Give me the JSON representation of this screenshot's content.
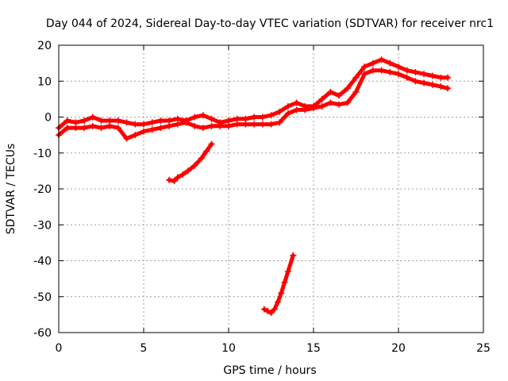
{
  "chart_data": {
    "type": "scatter",
    "title": "Day 044 of 2024, Sidereal Day-to-day VTEC variation (SDTVAR) for receiver nrc1",
    "xlabel": "GPS time / hours",
    "ylabel": "SDTVAR / TECUs",
    "xlim": [
      0,
      25
    ],
    "ylim": [
      -60,
      20
    ],
    "xticks": [
      0,
      5,
      10,
      15,
      20,
      25
    ],
    "yticks": [
      -60,
      -50,
      -40,
      -30,
      -20,
      -10,
      0,
      10,
      20
    ],
    "grid": true,
    "marker": "+",
    "series_color": "#ff0000",
    "series": [
      {
        "name": "main trace upper",
        "x": [
          0,
          0.5,
          1,
          1.5,
          2,
          2.5,
          3,
          3.5,
          4,
          4.5,
          5,
          5.5,
          6,
          6.5,
          7,
          7.5,
          8,
          8.5,
          9,
          9.5,
          10,
          10.5,
          11,
          11.5,
          12,
          12.5,
          13,
          13.5,
          14,
          14.5,
          15,
          15.5,
          16,
          16.5,
          17,
          17.5,
          18,
          18.5,
          19,
          19.5,
          20,
          20.5,
          21,
          21.5,
          22,
          22.5,
          22.9
        ],
        "y": [
          -3,
          -1,
          -1.5,
          -1,
          0,
          -1,
          -1,
          -1,
          -1.5,
          -2,
          -2,
          -1.5,
          -1,
          -1,
          -0.5,
          -1,
          0,
          0.5,
          -0.5,
          -1.5,
          -1,
          -0.5,
          -0.5,
          0,
          0,
          0.5,
          1.5,
          3,
          4,
          3,
          3,
          5,
          7,
          6,
          8,
          11,
          14,
          15,
          16,
          15,
          14,
          13,
          12.5,
          12,
          11.5,
          11,
          11
        ]
      },
      {
        "name": "main trace lower",
        "x": [
          0,
          0.5,
          1,
          1.5,
          2,
          2.5,
          3,
          3.5,
          4,
          4.5,
          5,
          5.5,
          6,
          6.5,
          7,
          7.5,
          8,
          8.5,
          9,
          9.5,
          10,
          10.5,
          11,
          11.5,
          12,
          12.5,
          13,
          13.5,
          14,
          14.5,
          15,
          15.5,
          16,
          16.5,
          17,
          17.5,
          18,
          18.5,
          19,
          19.5,
          20,
          20.5,
          21,
          21.5,
          22,
          22.5,
          22.9
        ],
        "y": [
          -5,
          -3,
          -3,
          -3,
          -2.5,
          -3,
          -2.5,
          -3,
          -6,
          -5,
          -4,
          -3.5,
          -3,
          -2.5,
          -2,
          -1.5,
          -2.5,
          -3,
          -2.5,
          -2.5,
          -2.5,
          -2,
          -2,
          -2,
          -2,
          -2,
          -1.5,
          1,
          2,
          2,
          2.5,
          3,
          4,
          3.5,
          4,
          7,
          12,
          13,
          13,
          12.5,
          12,
          11,
          10,
          9.5,
          9,
          8.5,
          8
        ]
      },
      {
        "name": "segment near 6.5-9h",
        "x": [
          6.5,
          6.8,
          7,
          7.3,
          7.6,
          8,
          8.4,
          8.7,
          9
        ],
        "y": [
          -17.5,
          -17.8,
          -16.8,
          -16,
          -15,
          -13.5,
          -11.5,
          -9.5,
          -7.5
        ]
      },
      {
        "name": "segment near 12-13.8h",
        "x": [
          12.1,
          12.3,
          12.5,
          12.7,
          12.9,
          13.1,
          13.3,
          13.5,
          13.8
        ],
        "y": [
          -53.5,
          -54,
          -54.5,
          -53.5,
          -51.5,
          -49,
          -46,
          -43,
          -38.5
        ]
      }
    ]
  }
}
